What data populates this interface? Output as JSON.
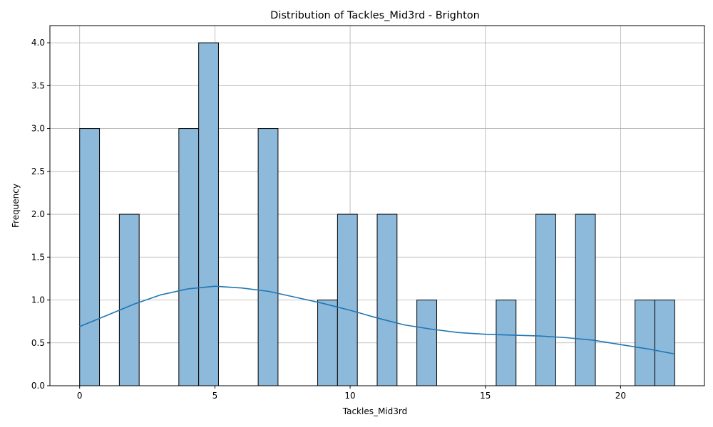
{
  "chart_data": {
    "type": "bar",
    "title": "Distribution of Tackles_Mid3rd - Brighton",
    "xlabel": "Tackles_Mid3rd",
    "ylabel": "Frequency",
    "xlim": [
      -1.1,
      23.1
    ],
    "ylim": [
      0,
      4.2
    ],
    "x_ticks": [
      0,
      5,
      10,
      15,
      20
    ],
    "y_ticks": [
      0.0,
      0.5,
      1.0,
      1.5,
      2.0,
      2.5,
      3.0,
      3.5,
      4.0
    ],
    "y_tick_decimals": 1,
    "grid": true,
    "bin_width": 0.7333,
    "bins": [
      {
        "x0": 0.0,
        "count": 3
      },
      {
        "x0": 1.4667,
        "count": 2
      },
      {
        "x0": 3.6667,
        "count": 3
      },
      {
        "x0": 4.4,
        "count": 4
      },
      {
        "x0": 6.6,
        "count": 3
      },
      {
        "x0": 8.8,
        "count": 1
      },
      {
        "x0": 9.5333,
        "count": 2
      },
      {
        "x0": 11.0,
        "count": 2
      },
      {
        "x0": 12.4667,
        "count": 1
      },
      {
        "x0": 15.4,
        "count": 1
      },
      {
        "x0": 16.8667,
        "count": 2
      },
      {
        "x0": 18.3333,
        "count": 2
      },
      {
        "x0": 20.5333,
        "count": 1
      },
      {
        "x0": 21.2667,
        "count": 1
      }
    ],
    "kde": {
      "x": [
        0,
        1,
        2,
        3,
        4,
        5,
        6,
        7,
        8,
        9,
        10,
        11,
        12,
        13,
        14,
        15,
        16,
        17,
        18,
        19,
        20,
        21,
        22
      ],
      "y": [
        0.69,
        0.82,
        0.95,
        1.06,
        1.13,
        1.16,
        1.14,
        1.1,
        1.03,
        0.96,
        0.88,
        0.79,
        0.71,
        0.66,
        0.62,
        0.6,
        0.59,
        0.58,
        0.56,
        0.53,
        0.48,
        0.43,
        0.37
      ]
    },
    "colors": {
      "bar_fill": "#8db9db",
      "bar_edge": "#000000",
      "kde_line": "#1f77b4",
      "grid": "#b0b0b0"
    }
  }
}
